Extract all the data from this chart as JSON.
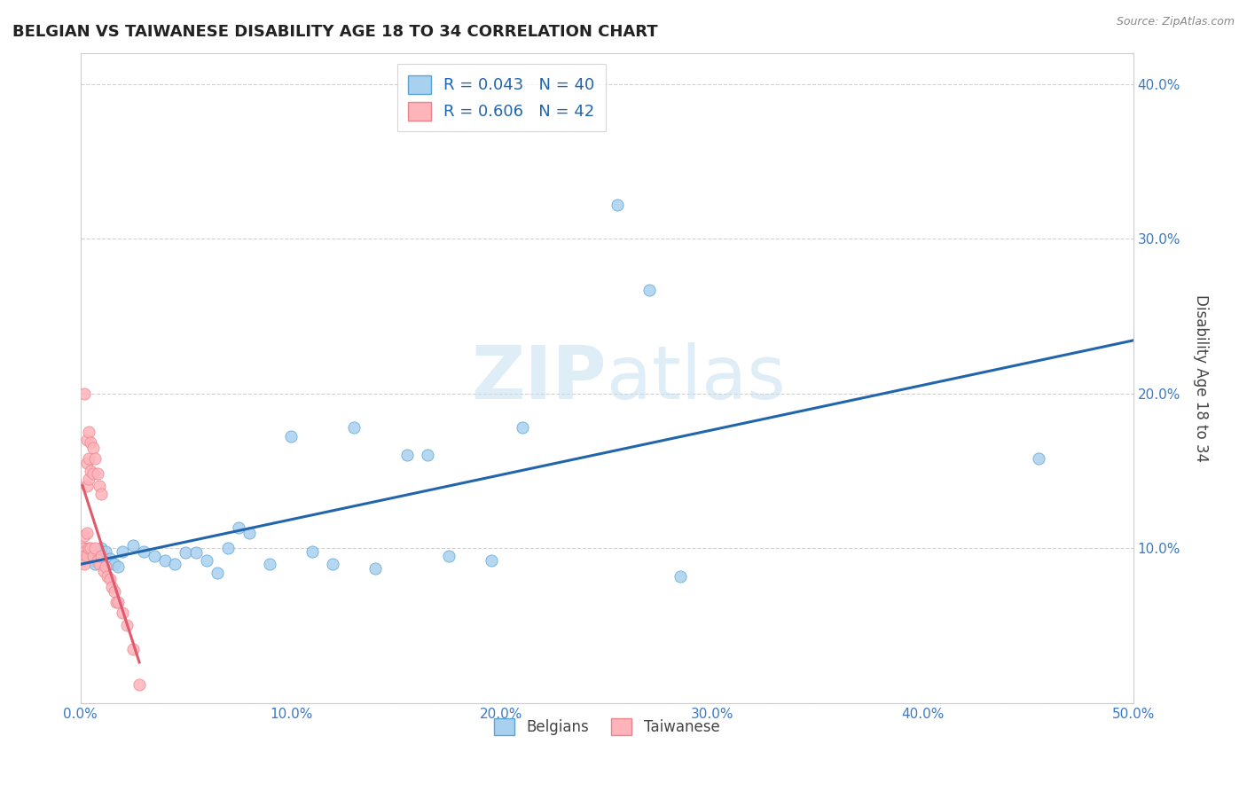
{
  "title": "BELGIAN VS TAIWANESE DISABILITY AGE 18 TO 34 CORRELATION CHART",
  "source": "Source: ZipAtlas.com",
  "ylabel": "Disability Age 18 to 34",
  "xlim": [
    0.0,
    0.5
  ],
  "ylim": [
    0.0,
    0.42
  ],
  "xticks": [
    0.0,
    0.1,
    0.2,
    0.3,
    0.4,
    0.5
  ],
  "yticks": [
    0.0,
    0.1,
    0.2,
    0.3,
    0.4
  ],
  "blue_scatter_color": "#a8d1f0",
  "blue_scatter_edge": "#5ba3d0",
  "pink_scatter_color": "#ffb3ba",
  "pink_scatter_edge": "#e8858c",
  "blue_line_color": "#2166ac",
  "pink_line_color": "#e05a6e",
  "pink_dash_color": "#f0a0aa",
  "belgians_x": [
    0.002,
    0.004,
    0.005,
    0.006,
    0.007,
    0.008,
    0.009,
    0.01,
    0.012,
    0.014,
    0.016,
    0.018,
    0.02,
    0.025,
    0.03,
    0.035,
    0.04,
    0.045,
    0.05,
    0.055,
    0.06,
    0.065,
    0.07,
    0.075,
    0.08,
    0.09,
    0.1,
    0.11,
    0.12,
    0.13,
    0.14,
    0.155,
    0.165,
    0.175,
    0.195,
    0.21,
    0.255,
    0.27,
    0.285,
    0.455
  ],
  "belgians_y": [
    0.1,
    0.098,
    0.095,
    0.092,
    0.09,
    0.095,
    0.092,
    0.1,
    0.098,
    0.093,
    0.09,
    0.088,
    0.098,
    0.102,
    0.098,
    0.095,
    0.092,
    0.09,
    0.097,
    0.097,
    0.092,
    0.084,
    0.1,
    0.113,
    0.11,
    0.09,
    0.172,
    0.098,
    0.09,
    0.178,
    0.087,
    0.16,
    0.16,
    0.095,
    0.092,
    0.178,
    0.322,
    0.267,
    0.082,
    0.158
  ],
  "taiwanese_x": [
    0.001,
    0.001,
    0.001,
    0.002,
    0.002,
    0.002,
    0.002,
    0.003,
    0.003,
    0.003,
    0.003,
    0.003,
    0.004,
    0.004,
    0.004,
    0.004,
    0.005,
    0.005,
    0.005,
    0.006,
    0.006,
    0.006,
    0.007,
    0.007,
    0.008,
    0.008,
    0.009,
    0.009,
    0.01,
    0.01,
    0.011,
    0.012,
    0.013,
    0.014,
    0.015,
    0.016,
    0.017,
    0.018,
    0.02,
    0.022,
    0.025,
    0.028
  ],
  "taiwanese_y": [
    0.1,
    0.097,
    0.092,
    0.2,
    0.108,
    0.095,
    0.09,
    0.17,
    0.155,
    0.14,
    0.11,
    0.095,
    0.175,
    0.158,
    0.145,
    0.1,
    0.168,
    0.15,
    0.1,
    0.165,
    0.148,
    0.095,
    0.158,
    0.1,
    0.148,
    0.092,
    0.14,
    0.09,
    0.135,
    0.095,
    0.085,
    0.088,
    0.082,
    0.08,
    0.075,
    0.072,
    0.065,
    0.065,
    0.058,
    0.05,
    0.035,
    0.012
  ],
  "watermark_zip_color": "#c5dff0",
  "watermark_atlas_color": "#c5dff0"
}
